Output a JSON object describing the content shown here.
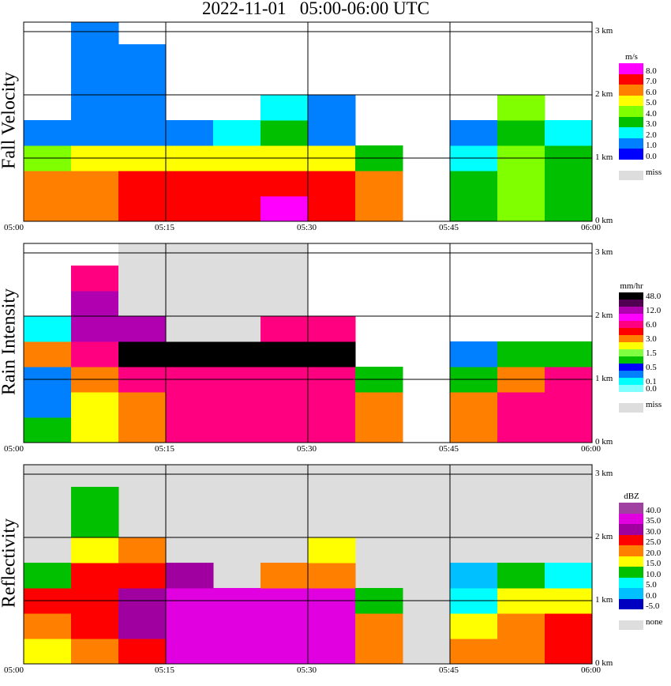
{
  "title": "2022-11-01   05:00-06:00 UTC",
  "chart_data": {
    "type": "heatmap",
    "x_range_minutes": [
      0,
      60
    ],
    "x_tick_labels": [
      "05:00",
      "05:15",
      "05:30",
      "05:45",
      "06:00"
    ],
    "x_ticks_minutes": [
      0,
      15,
      30,
      45,
      60
    ],
    "y_range_km": [
      0,
      3.15
    ],
    "y_tick_labels": [
      "0 km",
      "1 km",
      "2 km",
      "3 km"
    ],
    "y_ticks_km": [
      0,
      1,
      2,
      3
    ],
    "grid": true,
    "time_bin_minutes": 5,
    "height_bin_km": 0.4,
    "panels": [
      {
        "name": "Fall Velocity",
        "unit": "m/s",
        "empty_label": "miss",
        "empty_color": "#dddddd",
        "background": "#ffffff",
        "legend_colors": [
          "#ff00ff",
          "#ff0000",
          "#ff8000",
          "#ffff00",
          "#80ff00",
          "#00c000",
          "#00ffff",
          "#0080ff",
          "#0000ff"
        ],
        "legend_bounds": [
          8,
          7,
          6,
          5,
          4,
          3,
          2,
          1,
          0
        ],
        "legend_labels": [
          "8.0",
          "7.0",
          "6.0",
          "5.0",
          "4.0",
          "3.0",
          "2.0",
          "1.0",
          "0.0"
        ],
        "values": [
          [
            6,
            6,
            4.5,
            1.5,
            null,
            null,
            null,
            null
          ],
          [
            6.5,
            6.5,
            5,
            1.5,
            1.5,
            1.5,
            1.5,
            1.5
          ],
          [
            7,
            7,
            5,
            1.5,
            1.5,
            1.5,
            1,
            null
          ],
          [
            7.5,
            7.5,
            5,
            1.5,
            null,
            null,
            null,
            null
          ],
          [
            7.5,
            7.5,
            5,
            2,
            null,
            null,
            null,
            null
          ],
          [
            8,
            7.5,
            5,
            3,
            2,
            null,
            null,
            null
          ],
          [
            7.5,
            7.5,
            5,
            1.5,
            1.5,
            null,
            null,
            null
          ],
          [
            6,
            6,
            3,
            null,
            null,
            null,
            null,
            null
          ],
          [
            null,
            null,
            null,
            null,
            null,
            null,
            null,
            null
          ],
          [
            3.5,
            3.5,
            2,
            1,
            null,
            null,
            null,
            null
          ],
          [
            4,
            4,
            4,
            3,
            4,
            null,
            null,
            null
          ],
          [
            3.5,
            3.5,
            3,
            2,
            null,
            null,
            null,
            null
          ]
        ]
      },
      {
        "name": "Rain Intensity",
        "unit": "mm/hr",
        "empty_label": "miss",
        "empty_color": "#dddddd",
        "background": "#ffffff",
        "legend_colors": [
          "#000000",
          "#500050",
          "#b000b0",
          "#ff00ff",
          "#ff0080",
          "#ff0000",
          "#ff8000",
          "#ffff00",
          "#80ff40",
          "#00c000",
          "#0000ff",
          "#0080ff",
          "#00ffff",
          "#80ffff"
        ],
        "legend_bounds": [
          48,
          24,
          12,
          9,
          6,
          4.5,
          3,
          2,
          1.5,
          1,
          0.5,
          0.25,
          0.1,
          0
        ],
        "legend_labels": [
          "48.0",
          "",
          "12.0",
          "",
          "6.0",
          "",
          "3.0",
          "",
          "1.5",
          "",
          "0.5",
          "",
          "0.1",
          "0.0"
        ],
        "values": [
          [
            1,
            0.3,
            0.3,
            3,
            0.1,
            null,
            null,
            null
          ],
          [
            2,
            2,
            3,
            6,
            12,
            12,
            8,
            null
          ],
          [
            4,
            4,
            6,
            48,
            12,
            "miss",
            "miss",
            "miss"
          ],
          [
            6,
            6,
            6,
            48,
            "miss",
            "miss",
            "miss",
            "miss"
          ],
          [
            6,
            6,
            6,
            48,
            "miss",
            "miss",
            "miss",
            "miss"
          ],
          [
            8,
            8,
            8,
            48,
            6,
            "miss",
            "miss",
            "miss"
          ],
          [
            8,
            8,
            8,
            48,
            6,
            null,
            null,
            null
          ],
          [
            3,
            3,
            1,
            null,
            null,
            null,
            null,
            null
          ],
          [
            null,
            null,
            null,
            null,
            null,
            null,
            null,
            null
          ],
          [
            4,
            3,
            1,
            0.3,
            null,
            null,
            null,
            null
          ],
          [
            6,
            6,
            3,
            1,
            null,
            null,
            null,
            null
          ],
          [
            6,
            6,
            6,
            1,
            null,
            null,
            null,
            null
          ]
        ]
      },
      {
        "name": "Reflectivity",
        "unit": "dBZ",
        "empty_label": "none",
        "empty_color": "#dddddd",
        "background": "#dddddd",
        "legend_colors": [
          "#a040a0",
          "#e000e0",
          "#a000a0",
          "#ff0000",
          "#ff8000",
          "#ffff00",
          "#00c000",
          "#00ffff",
          "#00c0ff",
          "#0000c0"
        ],
        "legend_bounds": [
          40,
          35,
          30,
          25,
          20,
          15,
          10,
          5,
          0,
          -5
        ],
        "legend_labels": [
          "40.0",
          "35.0",
          "30.0",
          "25.0",
          "20.0",
          "15.0",
          "10.0",
          "5.0",
          "0.0",
          "-5.0"
        ],
        "values": [
          [
            17,
            22,
            27,
            12,
            null,
            null,
            null,
            null
          ],
          [
            22,
            27,
            28,
            27,
            17,
            12,
            12,
            null
          ],
          [
            28,
            32,
            33,
            27,
            22,
            null,
            null,
            null
          ],
          [
            36,
            37,
            37,
            30,
            null,
            null,
            null,
            null
          ],
          [
            37,
            37,
            37,
            null,
            null,
            null,
            null,
            null
          ],
          [
            37,
            37,
            37,
            22,
            null,
            null,
            null,
            null
          ],
          [
            37,
            37,
            37,
            22,
            17,
            null,
            null,
            null
          ],
          [
            22,
            22,
            12,
            null,
            null,
            null,
            null,
            null
          ],
          [
            null,
            null,
            null,
            null,
            null,
            null,
            null,
            null
          ],
          [
            20,
            17,
            7,
            2,
            null,
            null,
            null,
            null
          ],
          [
            22,
            22,
            17,
            12,
            null,
            null,
            null,
            null
          ],
          [
            27,
            27,
            17,
            7,
            null,
            null,
            null,
            null
          ]
        ]
      }
    ]
  }
}
